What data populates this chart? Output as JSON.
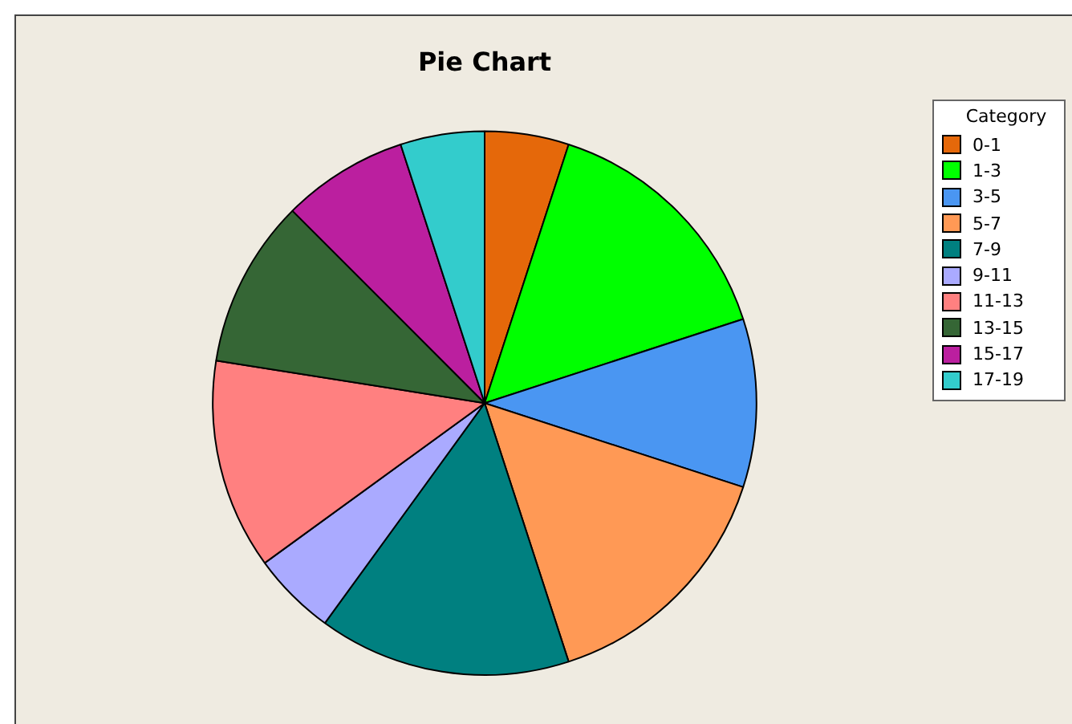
{
  "chart_data": {
    "type": "pie",
    "title": "Pie Chart",
    "legend_title": "Category",
    "legend": "top right",
    "categories": [
      "0-1",
      "1-3",
      "3-5",
      "5-7",
      "7-9",
      "9-11",
      "11-13",
      "13-15",
      "15-17",
      "17-19"
    ],
    "values": [
      5,
      15,
      10,
      15,
      15,
      5,
      12.5,
      10,
      7.5,
      5
    ],
    "colors": [
      "#e5680a",
      "#00ff00",
      "#4a96f2",
      "#ff9955",
      "#008080",
      "#aaaaff",
      "#ff8080",
      "#356635",
      "#bb1f9f",
      "#33cccc"
    ]
  }
}
